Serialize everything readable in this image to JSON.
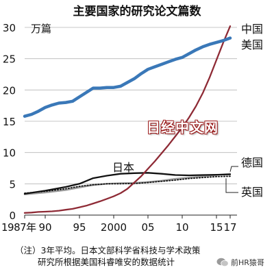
{
  "title": "主要国家的研究论文篇数",
  "chart_data": {
    "type": "line",
    "unit_label": "万篇",
    "ylim": [
      0,
      30
    ],
    "yticks": [
      0,
      5,
      10,
      15,
      20,
      25,
      30
    ],
    "xlim": [
      1987,
      2018
    ],
    "xticks": [
      {
        "value": 1987,
        "label": "1987年"
      },
      {
        "value": 1990,
        "label": "90"
      },
      {
        "value": 1995,
        "label": "95"
      },
      {
        "value": 2000,
        "label": "2000"
      },
      {
        "value": 2005,
        "label": "05"
      },
      {
        "value": 2010,
        "label": "10"
      },
      {
        "value": 2015,
        "label": "15"
      },
      {
        "value": 2017,
        "label": "17"
      }
    ],
    "grid": "horizontal",
    "series": [
      {
        "name": "美国",
        "color": "#3a78b8",
        "style": "solid-thick",
        "x": [
          1987,
          1988,
          1989,
          1990,
          1991,
          1992,
          1993,
          1994,
          1995,
          1996,
          1997,
          1998,
          1999,
          2000,
          2001,
          2002,
          2003,
          2004,
          2005,
          2006,
          2007,
          2008,
          2009,
          2010,
          2011,
          2012,
          2013,
          2014,
          2015,
          2016,
          2017
        ],
        "y": [
          15.8,
          16.1,
          16.6,
          17.2,
          17.6,
          17.9,
          18.0,
          18.2,
          18.9,
          19.6,
          20.3,
          20.3,
          20.4,
          20.4,
          20.6,
          21.2,
          21.8,
          22.6,
          23.3,
          23.7,
          24.1,
          24.5,
          24.9,
          25.2,
          25.8,
          26.4,
          26.9,
          27.3,
          27.6,
          27.9,
          28.3
        ]
      },
      {
        "name": "中国",
        "color": "#8e2a35",
        "style": "solid",
        "x": [
          1987,
          1988,
          1989,
          1990,
          1991,
          1992,
          1993,
          1994,
          1995,
          1996,
          1997,
          1998,
          1999,
          2000,
          2001,
          2002,
          2003,
          2004,
          2005,
          2006,
          2007,
          2008,
          2009,
          2010,
          2011,
          2012,
          2013,
          2014,
          2015,
          2016,
          2017
        ],
        "y": [
          0.35,
          0.4,
          0.5,
          0.55,
          0.6,
          0.7,
          0.85,
          1.0,
          1.25,
          1.5,
          1.85,
          2.2,
          2.6,
          3.0,
          3.5,
          4.2,
          5.2,
          6.2,
          7.4,
          8.6,
          9.9,
          11.2,
          12.6,
          14.0,
          15.6,
          17.4,
          19.5,
          22.0,
          24.8,
          27.6,
          30.2
        ]
      },
      {
        "name": "日本",
        "color": "#111111",
        "style": "solid",
        "x": [
          1987,
          1990,
          1993,
          1995,
          1997,
          1999,
          2001,
          2003,
          2005,
          2007,
          2009,
          2011,
          2013,
          2015,
          2017
        ],
        "y": [
          3.4,
          3.9,
          4.5,
          5.0,
          5.9,
          6.3,
          6.6,
          6.7,
          6.75,
          6.6,
          6.4,
          6.35,
          6.4,
          6.45,
          6.5
        ]
      },
      {
        "name": "德国",
        "color": "#9a9a9a",
        "style": "solid-gray",
        "x": [
          1987,
          1990,
          1993,
          1995,
          1997,
          1999,
          2001,
          2003,
          2005,
          2007,
          2009,
          2011,
          2013,
          2015,
          2017
        ],
        "y": [
          3.3,
          3.6,
          4.0,
          4.4,
          4.8,
          5.0,
          5.1,
          5.15,
          5.3,
          5.5,
          5.8,
          6.0,
          6.2,
          6.4,
          6.6
        ]
      },
      {
        "name": "英国",
        "color": "#111111",
        "style": "dotted",
        "x": [
          1987,
          1990,
          1993,
          1995,
          1997,
          1999,
          2001,
          2003,
          2005,
          2007,
          2009,
          2011,
          2013,
          2015,
          2017
        ],
        "y": [
          3.5,
          3.8,
          4.2,
          4.6,
          4.85,
          5.0,
          5.0,
          5.05,
          5.2,
          5.4,
          5.6,
          5.85,
          6.0,
          6.15,
          6.2
        ]
      }
    ],
    "series_labels": {
      "china": "中国",
      "usa": "美国",
      "japan": "日本",
      "germany": "德国",
      "uk": "英国"
    }
  },
  "note_line1": "（注）3年平均。日本文部科学省科技与学术政策",
  "note_line2": "研究所根据美国科睿唯安的数据统计",
  "watermark": "日经中文网",
  "wechat_label": "前HR猿哥"
}
